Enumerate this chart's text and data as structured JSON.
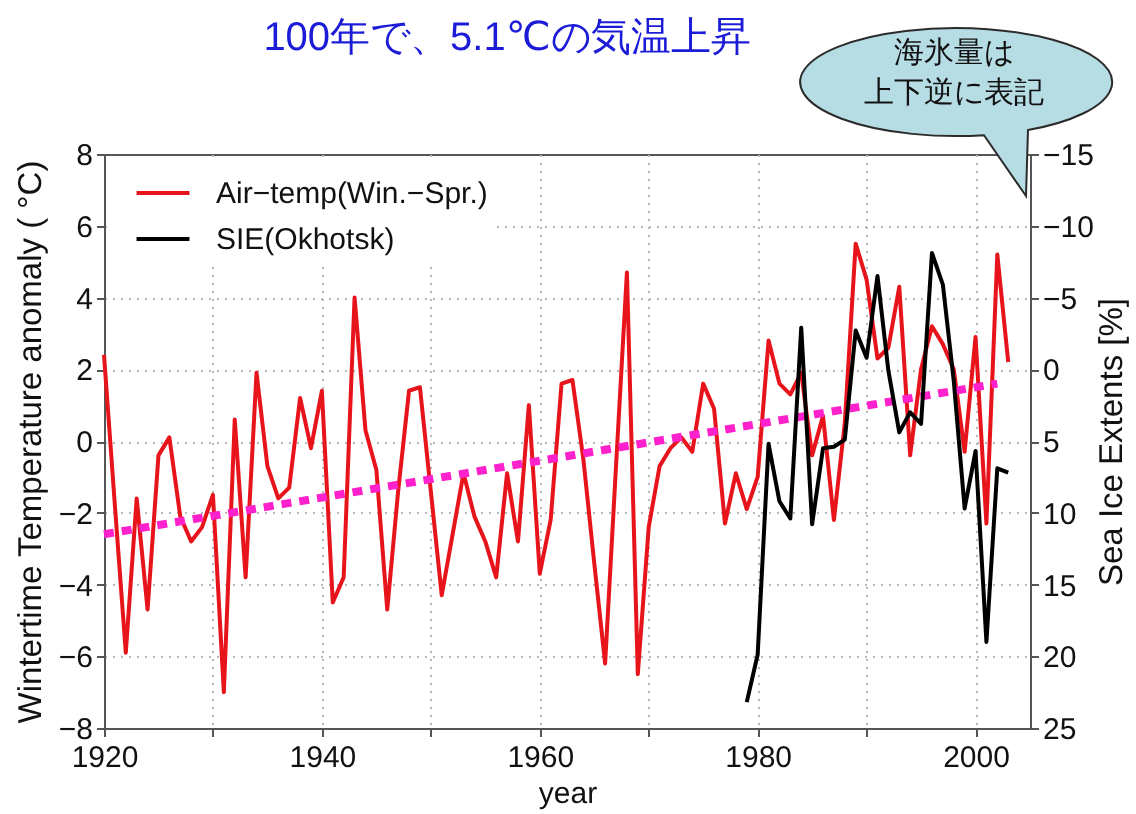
{
  "chart_data": {
    "type": "line",
    "title": "100年で、5.1℃の気温上昇",
    "xlabel": "year",
    "ylabel": "Wintertime Temperature anomaly ( °C)",
    "y2label": "Sea Ice Extents [%]",
    "annotations": [
      "海氷量は上下逆に表記"
    ],
    "xlim": [
      1920,
      2005
    ],
    "xticks": [
      1920,
      {
        "value": 1930,
        "label": null
      },
      1940,
      {
        "value": 1950,
        "label": null
      },
      1960,
      {
        "value": 1970,
        "label": null
      },
      1980,
      {
        "value": 1990,
        "label": null
      },
      2000
    ],
    "ylim": [
      -8,
      8
    ],
    "yticks": [
      -8,
      -6,
      -4,
      -2,
      0,
      2,
      4,
      6,
      8
    ],
    "y2lim": [
      25,
      -15
    ],
    "y2ticks": [
      -15,
      -10,
      -5,
      0,
      5,
      10,
      15,
      20,
      25
    ],
    "grid": true,
    "legend": "top left",
    "series": [
      {
        "name": "Air−temp(Win.−Spr.)",
        "color": "#e8141c",
        "x": [
          1920,
          1921,
          1922,
          1923,
          1924,
          1925,
          1926,
          1927,
          1928,
          1929,
          1930,
          1931,
          1932,
          1933,
          1934,
          1935,
          1936,
          1937,
          1938,
          1939,
          1940,
          1941,
          1942,
          1943,
          1944,
          1945,
          1946,
          1947,
          1948,
          1949,
          1950,
          1951,
          1952,
          1953,
          1954,
          1955,
          1956,
          1957,
          1958,
          1959,
          1960,
          1961,
          1962,
          1963,
          1964,
          1965,
          1966,
          1967,
          1968,
          1969,
          1970,
          1971,
          1972,
          1973,
          1974,
          1975,
          1976,
          1977,
          1978,
          1979,
          1980,
          1981,
          1982,
          1983,
          1984,
          1985,
          1986,
          1987,
          1988,
          1989,
          1990,
          1991,
          1992,
          1993,
          1994,
          1995,
          1996,
          1997,
          1998,
          1999,
          2000,
          2001,
          2002,
          2003
        ],
        "values": [
          2.4,
          -1.8,
          -5.9,
          -1.6,
          -4.7,
          -0.4,
          0.1,
          -2.1,
          -2.8,
          -2.4,
          -1.5,
          -7.0,
          0.6,
          -3.8,
          1.9,
          -0.7,
          -1.6,
          -1.3,
          1.2,
          -0.2,
          1.4,
          -4.5,
          -3.8,
          4.0,
          0.3,
          -0.8,
          -4.7,
          -1.4,
          1.4,
          1.5,
          -1.4,
          -4.3,
          -2.6,
          -0.9,
          -2.1,
          -2.8,
          -3.8,
          -0.9,
          -2.8,
          1.0,
          -3.7,
          -2.2,
          1.6,
          1.7,
          -0.5,
          -3.4,
          -6.2,
          -0.7,
          4.7,
          -6.5,
          -2.4,
          -0.7,
          -0.2,
          0.1,
          -0.3,
          1.6,
          0.9,
          -2.3,
          -0.9,
          -1.9,
          -1.0,
          2.8,
          1.6,
          1.3,
          1.9,
          -0.4,
          0.7,
          -2.2,
          0.5,
          5.5,
          4.5,
          2.3,
          2.6,
          4.3,
          -0.4,
          2.0,
          3.2,
          2.7,
          2.0,
          -0.3,
          2.9,
          -2.3,
          5.2,
          2.2
        ]
      },
      {
        "name": "SIE(Okhotsk)",
        "color": "#000000",
        "axis": "y2",
        "x": [
          1979,
          1980,
          1981,
          1982,
          1983,
          1984,
          1985,
          1986,
          1987,
          1988,
          1989,
          1990,
          1991,
          1992,
          1993,
          1994,
          1995,
          1996,
          1997,
          1998,
          1999,
          2000,
          2001,
          2002,
          2003
        ],
        "values": [
          23.2,
          19.9,
          5.2,
          9.2,
          10.4,
          -2.9,
          10.8,
          5.5,
          5.4,
          4.9,
          -2.7,
          -0.8,
          -6.5,
          0.1,
          4.4,
          3.0,
          3.8,
          -8.1,
          -5.9,
          0.8,
          9.7,
          5.7,
          19.0,
          6.9,
          7.2
        ]
      },
      {
        "type": "line",
        "color": "#ff22cc",
        "line_style": "dotted",
        "x": [
          1920,
          2002
        ],
        "values": [
          -2.6,
          1.6
        ]
      }
    ]
  }
}
